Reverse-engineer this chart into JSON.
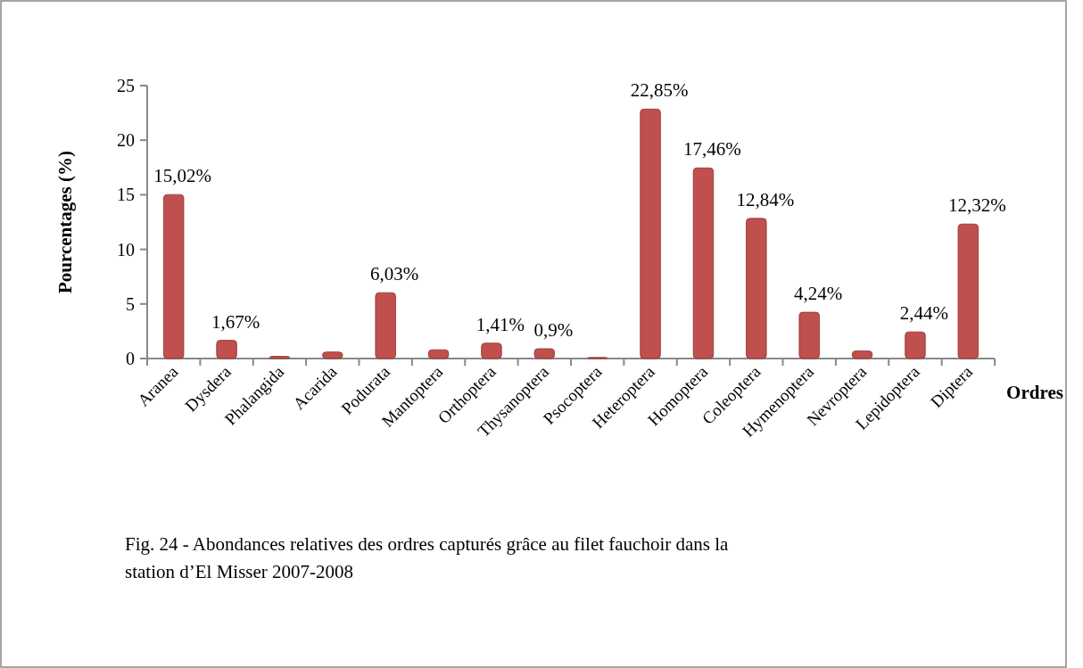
{
  "chart_data": {
    "type": "bar",
    "ylabel": "Pourcentages (%)",
    "xlabel": "Ordres",
    "categories": [
      "Aranea",
      "Dysdera",
      "Phalangida",
      "Acarida",
      "Podurata",
      "Mantoptera",
      "Orthoptera",
      "Thysanoptera",
      "Psocoptera",
      "Heteroptera",
      "Homoptera",
      "Coleoptera",
      "Hymenoptera",
      "Nevroptera",
      "Lepidoptera",
      "Diptera"
    ],
    "values": [
      15.02,
      1.67,
      0.2,
      0.6,
      6.03,
      0.8,
      1.41,
      0.9,
      0.1,
      22.85,
      17.46,
      12.84,
      4.24,
      0.7,
      2.44,
      12.32
    ],
    "value_labels": [
      "15,02%",
      "1,67%",
      null,
      null,
      "6,03%",
      null,
      "1,41%",
      "0,9%",
      null,
      "22,85%",
      "17,46%",
      "12,84%",
      "4,24%",
      null,
      "2,44%",
      "12,32%"
    ],
    "color": "#c0504d",
    "ylim": [
      0,
      25
    ],
    "yticks": [
      0,
      5,
      10,
      15,
      20,
      25
    ],
    "grid": false,
    "annotations": [
      "Fig. 24 - Abondances relatives des ordres capturés grâce au filet fauchoir dans la station d’El Misser 2007-2008"
    ]
  }
}
